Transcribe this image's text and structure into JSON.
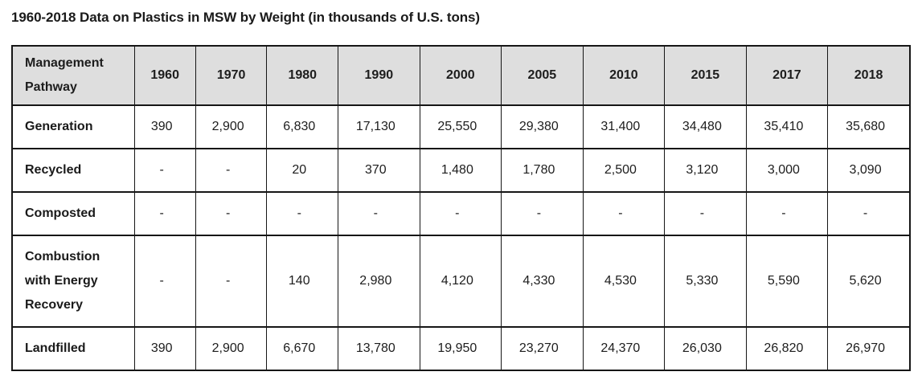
{
  "title": "1960-2018 Data on Plastics in MSW by Weight (in thousands of U.S. tons)",
  "colors": {
    "highlight_yellow": "#ffe000",
    "header_background": "#dedede",
    "border": "#161616"
  },
  "table": {
    "header": [
      "Management Pathway",
      "1960",
      "1970",
      "1980",
      "1990",
      "2000",
      "2005",
      "2010",
      "2015",
      "2017",
      "2018"
    ],
    "rows": [
      {
        "label": "Generation",
        "values": [
          "390",
          "2,900",
          "6,830",
          "17,130",
          "25,550",
          "29,380",
          "31,400",
          "34,480",
          "35,410",
          "35,680"
        ]
      },
      {
        "label": "Recycled",
        "values": [
          "-",
          "-",
          "20",
          "370",
          "1,480",
          "1,780",
          "2,500",
          "3,120",
          "3,000",
          "3,090"
        ]
      },
      {
        "label": "Composted",
        "values": [
          "-",
          "-",
          "-",
          "-",
          "-",
          "-",
          "-",
          "-",
          "-",
          "-"
        ]
      },
      {
        "label": "Combustion with Energy Recovery",
        "values": [
          "-",
          "-",
          "140",
          "2,980",
          "4,120",
          "4,330",
          "4,530",
          "5,330",
          "5,590",
          "5,620"
        ]
      },
      {
        "label": "Landfilled",
        "values": [
          "390",
          "2,900",
          "6,670",
          "13,780",
          "19,950",
          "23,270",
          "24,370",
          "26,030",
          "26,820",
          "26,970"
        ]
      }
    ]
  },
  "chart_data": {
    "type": "table",
    "title": "1960-2018 Data on Plastics in MSW by Weight (in thousands of U.S. tons)",
    "unit": "thousands of U.S. tons",
    "columns": [
      "1960",
      "1970",
      "1980",
      "1990",
      "2000",
      "2005",
      "2010",
      "2015",
      "2017",
      "2018"
    ],
    "rows": [
      {
        "name": "Generation",
        "values": [
          390,
          2900,
          6830,
          17130,
          25550,
          29380,
          31400,
          34480,
          35410,
          35680
        ]
      },
      {
        "name": "Recycled",
        "values": [
          null,
          null,
          20,
          370,
          1480,
          1780,
          2500,
          3120,
          3000,
          3090
        ]
      },
      {
        "name": "Composted",
        "values": [
          null,
          null,
          null,
          null,
          null,
          null,
          null,
          null,
          null,
          null
        ]
      },
      {
        "name": "Combustion with Energy Recovery",
        "values": [
          null,
          null,
          140,
          2980,
          4120,
          4330,
          4530,
          5330,
          5590,
          5620
        ]
      },
      {
        "name": "Landfilled",
        "values": [
          390,
          2900,
          6670,
          13780,
          19950,
          23270,
          24370,
          26030,
          26820,
          26970
        ]
      }
    ],
    "highlighted_cells": [
      {
        "row": "Recycled",
        "column": "2018",
        "value": 3090
      },
      {
        "row": "Combustion with Energy Recovery",
        "column": "2018",
        "value": 5620
      },
      {
        "row": "Landfilled",
        "column": "2018",
        "value": 26970
      }
    ]
  }
}
